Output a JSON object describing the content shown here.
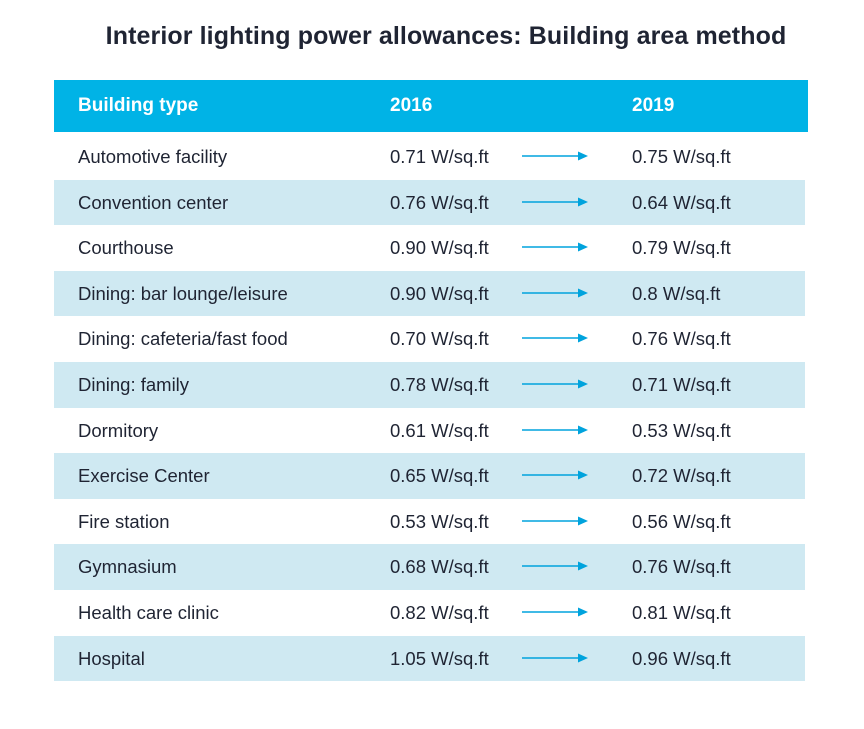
{
  "title": "Interior lighting power allowances: Building area method",
  "colors": {
    "header_bg": "#00b3e6",
    "header_text": "#ffffff",
    "alt_row_bg": "#cfe9f2",
    "arrow": "#00a3dd"
  },
  "table": {
    "columns": [
      "Building type",
      "2016",
      "2019"
    ],
    "rows": [
      {
        "type": "Automotive facility",
        "v2016": "0.71 W/sq.ft",
        "v2019": "0.75 W/sq.ft"
      },
      {
        "type": "Convention center",
        "v2016": "0.76 W/sq.ft",
        "v2019": "0.64 W/sq.ft"
      },
      {
        "type": "Courthouse",
        "v2016": "0.90 W/sq.ft",
        "v2019": "0.79 W/sq.ft"
      },
      {
        "type": "Dining: bar lounge/leisure",
        "v2016": "0.90 W/sq.ft",
        "v2019": "0.8 W/sq.ft"
      },
      {
        "type": "Dining: cafeteria/fast food",
        "v2016": "0.70 W/sq.ft",
        "v2019": "0.76 W/sq.ft"
      },
      {
        "type": "Dining: family",
        "v2016": "0.78 W/sq.ft",
        "v2019": "0.71 W/sq.ft"
      },
      {
        "type": "Dormitory",
        "v2016": "0.61 W/sq.ft",
        "v2019": "0.53 W/sq.ft"
      },
      {
        "type": "Exercise Center",
        "v2016": "0.65 W/sq.ft",
        "v2019": "0.72 W/sq.ft"
      },
      {
        "type": "Fire station",
        "v2016": "0.53 W/sq.ft",
        "v2019": "0.56 W/sq.ft"
      },
      {
        "type": "Gymnasium",
        "v2016": "0.68 W/sq.ft",
        "v2019": "0.76 W/sq.ft"
      },
      {
        "type": "Health care clinic",
        "v2016": "0.82 W/sq.ft",
        "v2019": "0.81 W/sq.ft"
      },
      {
        "type": "Hospital",
        "v2016": "1.05 W/sq.ft",
        "v2019": "0.96 W/sq.ft"
      }
    ]
  }
}
